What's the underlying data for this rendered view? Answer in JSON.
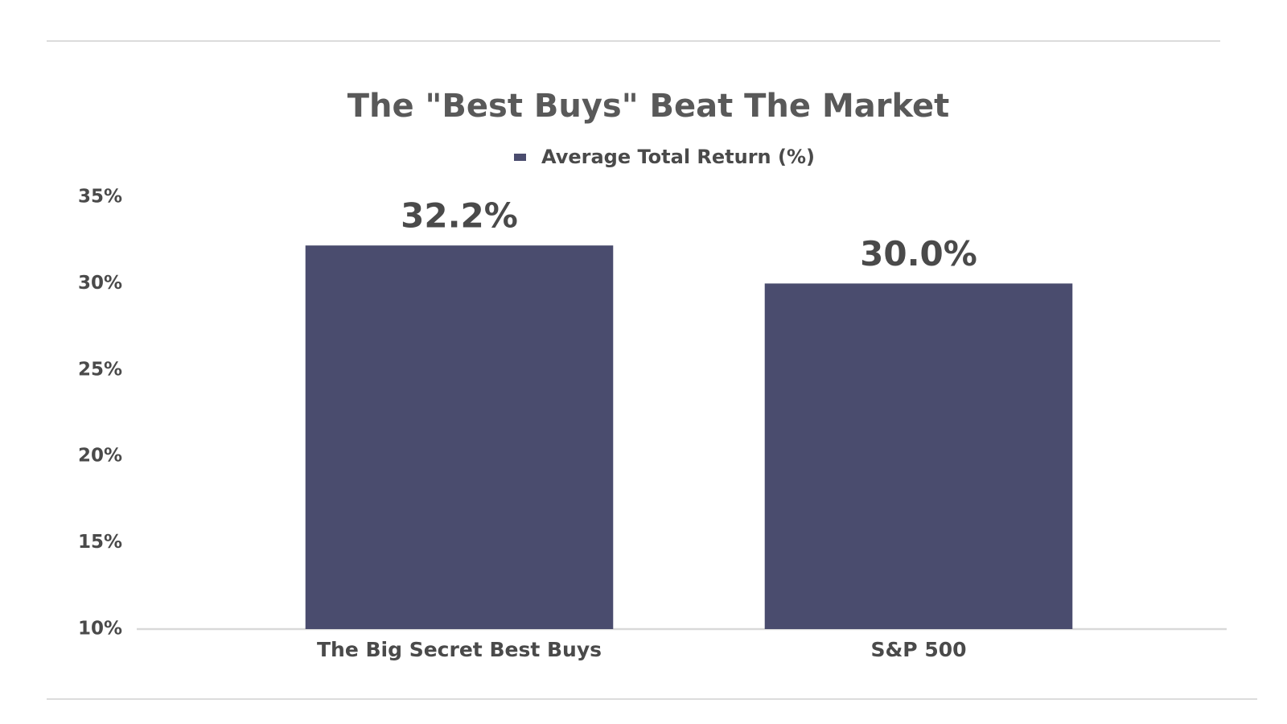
{
  "chart_data": {
    "type": "bar",
    "title": "The \"Best Buys\" Beat The Market",
    "categories": [
      "The Big Secret Best Buys",
      "S&P 500"
    ],
    "series": [
      {
        "name": "Average Total Return (%)",
        "color": "#4a4c6e",
        "values": [
          32.2,
          30.0
        ],
        "value_labels": [
          "32.2%",
          "30.0%"
        ]
      }
    ],
    "ylim": [
      10,
      35
    ],
    "yticks": [
      {
        "value": 10,
        "label": "10%"
      },
      {
        "value": 15,
        "label": "15%"
      },
      {
        "value": 20,
        "label": "20%"
      },
      {
        "value": 25,
        "label": "25%"
      },
      {
        "value": 30,
        "label": "30%"
      },
      {
        "value": 35,
        "label": "35%"
      }
    ],
    "grid": false,
    "legend": "top"
  }
}
